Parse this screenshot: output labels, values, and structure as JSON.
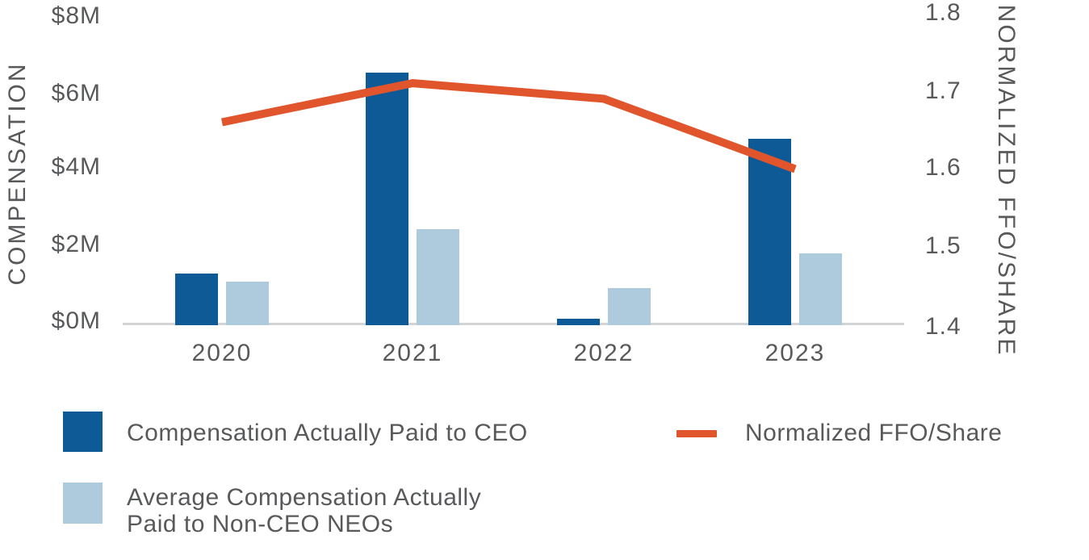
{
  "chart_data": {
    "type": "bar",
    "subtype": "grouped-bars-with-line-dual-axis",
    "categories": [
      "2020",
      "2021",
      "2022",
      "2023"
    ],
    "series": [
      {
        "name": "Compensation Actually Paid to CEO",
        "kind": "bar",
        "axis": "left",
        "color": "#0E5A97",
        "values_millions_usd": [
          1.33,
          6.47,
          0.16,
          4.78
        ]
      },
      {
        "name": "Average Compensation Actually Paid to Non-CEO NEOs",
        "kind": "bar",
        "axis": "left",
        "color": "#AECADD",
        "values_millions_usd": [
          1.12,
          2.45,
          0.95,
          1.84
        ]
      },
      {
        "name": "Normalized FFO/Share",
        "kind": "line",
        "axis": "right",
        "color": "#E0552C",
        "values": [
          1.66,
          1.71,
          1.69,
          1.6
        ]
      }
    ],
    "left_axis": {
      "title": "COMPENSATION",
      "tick_labels_top_to_bottom": [
        "$8M",
        "$6M",
        "$4M",
        "$2M",
        "$0M"
      ],
      "min": 0,
      "max": 8
    },
    "right_axis": {
      "title": "NORMALIZED FFO/SHARE",
      "tick_labels_top_to_bottom": [
        "1.8",
        "1.7",
        "1.6",
        "1.5",
        "1.4"
      ],
      "min": 1.4,
      "max": 1.8
    },
    "grid": "off",
    "legend_position": "bottom"
  },
  "legend": {
    "ceo_label": "Compensation Actually Paid to CEO",
    "neo_label_line1": "Average Compensation Actually",
    "neo_label_line2": "Paid to Non-CEO NEOs",
    "ffo_label": "Normalized FFO/Share"
  },
  "colors": {
    "ceo_bar": "#0E5A97",
    "neo_bar": "#AECADD",
    "ffo_line": "#E0552C",
    "text": "#58595B",
    "axis_line": "#D2D4D5"
  }
}
